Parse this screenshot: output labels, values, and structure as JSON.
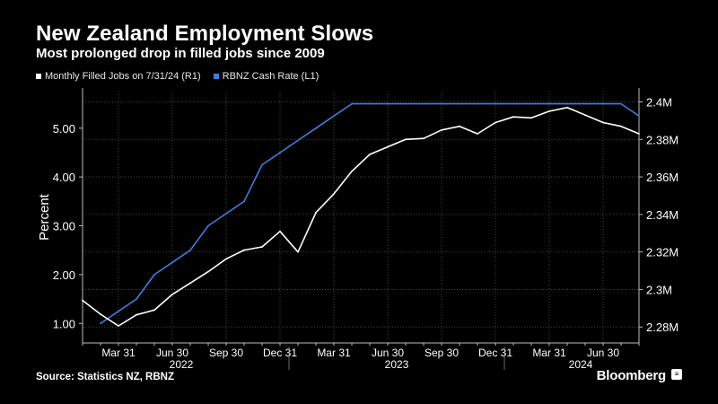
{
  "header": {
    "title": "New Zealand Employment Slows",
    "subtitle": "Most prolonged drop in filled jobs since 2009"
  },
  "footer": {
    "source": "Source: Statistics NZ, RBNZ",
    "brand": "Bloomberg",
    "brand_icon": "terminal-icon"
  },
  "colors": {
    "background": "#000000",
    "filled_jobs": "#ffffff",
    "cash_rate": "#3d7fe0",
    "grid": "#555555"
  },
  "chart_data": {
    "type": "line",
    "x": [
      "2022-01",
      "2022-02",
      "2022-03",
      "2022-04",
      "2022-05",
      "2022-06",
      "2022-07",
      "2022-08",
      "2022-09",
      "2022-10",
      "2022-11",
      "2022-12",
      "2023-01",
      "2023-02",
      "2023-03",
      "2023-04",
      "2023-05",
      "2023-06",
      "2023-07",
      "2023-08",
      "2023-09",
      "2023-10",
      "2023-11",
      "2023-12",
      "2024-01",
      "2024-02",
      "2024-03",
      "2024-04",
      "2024-05",
      "2024-06",
      "2024-07",
      "2024-08"
    ],
    "series": [
      {
        "name": "Monthly Filled Jobs on 7/31/24 (R1)",
        "axis": "right",
        "values": [
          2.2942,
          2.2868,
          2.2806,
          2.2865,
          2.289,
          2.2974,
          2.3034,
          2.3095,
          2.3163,
          2.321,
          2.3227,
          2.331,
          2.32,
          2.341,
          2.351,
          2.363,
          2.372,
          2.376,
          2.38,
          2.3805,
          2.385,
          2.387,
          2.383,
          2.389,
          2.392,
          2.3915,
          2.395,
          2.397,
          2.393,
          2.389,
          2.387,
          2.383
        ]
      },
      {
        "name": "RBNZ Cash Rate (L1)",
        "axis": "left",
        "values": [
          null,
          1.0,
          1.25,
          1.5,
          2.0,
          2.25,
          2.5,
          3.0,
          3.25,
          3.5,
          4.25,
          4.5,
          4.75,
          5.0,
          5.25,
          5.5,
          5.5,
          5.5,
          5.5,
          5.5,
          5.5,
          5.5,
          5.5,
          5.5,
          5.5,
          5.5,
          5.5,
          5.5,
          5.5,
          5.5,
          5.5,
          5.25
        ]
      }
    ],
    "left_axis": {
      "label": "Percent",
      "ticks": [
        "1.00",
        "2.00",
        "3.00",
        "4.00",
        "5.00"
      ],
      "ylim": [
        0.6,
        5.75
      ]
    },
    "right_axis": {
      "ticks": [
        "2.28M",
        "2.3M",
        "2.32M",
        "2.34M",
        "2.36M",
        "2.38M",
        "2.4M"
      ],
      "ylim": [
        2.2715,
        2.4055
      ]
    },
    "x_tick_labels": [
      "Mar 31",
      "Jun 30",
      "Sep 30",
      "Dec 31",
      "Mar 31",
      "Jun 30",
      "Sep 30",
      "Dec 31",
      "Mar 31",
      "Jun 30"
    ],
    "x_year_labels": [
      "2022",
      "2023",
      "2024"
    ],
    "grid": true,
    "legend_position": "top-left"
  }
}
